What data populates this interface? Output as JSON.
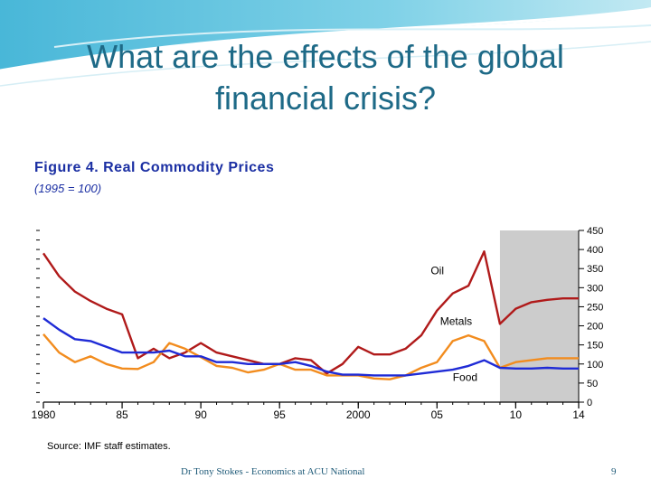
{
  "slide": {
    "title_line1": "What are the effects of the global",
    "title_line2": "financial crisis?",
    "footer": "Dr Tony Stokes - Economics at ACU National",
    "page_number": "9"
  },
  "colors": {
    "title": "#1e6a87",
    "oil": "#b01a1a",
    "metals": "#f28c1e",
    "food": "#1f2bd6",
    "forecast_shade": "#cccccc",
    "figure_title": "#1b2fa3"
  },
  "chart_data": {
    "type": "line",
    "title": "Figure 4.   Real Commodity Prices",
    "subtitle": "(1995 = 100)",
    "source": "Source: IMF staff estimates.",
    "xlim": [
      1980,
      2014
    ],
    "ylim": [
      0,
      450
    ],
    "x_ticks": [
      1980,
      1985,
      1990,
      1995,
      2000,
      2005,
      2010,
      2014
    ],
    "x_tick_labels": [
      "1980",
      "85",
      "90",
      "95",
      "2000",
      "05",
      "10",
      "14"
    ],
    "y_ticks": [
      0,
      50,
      100,
      150,
      200,
      250,
      300,
      350,
      400,
      450
    ],
    "y_tick_labels": [
      "0",
      "50",
      "100",
      "150",
      "200",
      "250",
      "300",
      "350",
      "400",
      "450"
    ],
    "shaded_range": [
      2009,
      2014
    ],
    "series": [
      {
        "name": "Oil",
        "label": "Oil",
        "color": "#b01a1a",
        "x": [
          1980,
          1981,
          1982,
          1983,
          1984,
          1985,
          1986,
          1987,
          1988,
          1989,
          1990,
          1991,
          1992,
          1993,
          1994,
          1995,
          1996,
          1997,
          1998,
          1999,
          2000,
          2001,
          2002,
          2003,
          2004,
          2005,
          2006,
          2007,
          2008,
          2009,
          2010,
          2011,
          2012,
          2013,
          2014
        ],
        "values": [
          390,
          330,
          290,
          265,
          245,
          230,
          115,
          140,
          115,
          130,
          155,
          130,
          120,
          110,
          100,
          100,
          115,
          110,
          75,
          100,
          145,
          125,
          125,
          140,
          175,
          240,
          285,
          305,
          395,
          205,
          245,
          262,
          268,
          272,
          272
        ]
      },
      {
        "name": "Metals",
        "label": "Metals",
        "color": "#f28c1e",
        "x": [
          1980,
          1981,
          1982,
          1983,
          1984,
          1985,
          1986,
          1987,
          1988,
          1989,
          1990,
          1991,
          1992,
          1993,
          1994,
          1995,
          1996,
          1997,
          1998,
          1999,
          2000,
          2001,
          2002,
          2003,
          2004,
          2005,
          2006,
          2007,
          2008,
          2009,
          2010,
          2011,
          2012,
          2013,
          2014
        ],
        "values": [
          178,
          130,
          105,
          120,
          100,
          88,
          87,
          105,
          155,
          140,
          118,
          95,
          90,
          78,
          85,
          100,
          85,
          85,
          70,
          70,
          70,
          62,
          60,
          70,
          90,
          105,
          160,
          175,
          160,
          90,
          105,
          110,
          115,
          115,
          115
        ]
      },
      {
        "name": "Food",
        "label": "Food",
        "color": "#1f2bd6",
        "x": [
          1980,
          1981,
          1982,
          1983,
          1984,
          1985,
          1986,
          1987,
          1988,
          1989,
          1990,
          1991,
          1992,
          1993,
          1994,
          1995,
          1996,
          1997,
          1998,
          1999,
          2000,
          2001,
          2002,
          2003,
          2004,
          2005,
          2006,
          2007,
          2008,
          2009,
          2010,
          2011,
          2012,
          2013,
          2014
        ],
        "values": [
          220,
          190,
          165,
          160,
          145,
          130,
          130,
          130,
          135,
          120,
          120,
          105,
          105,
          100,
          100,
          100,
          105,
          95,
          80,
          72,
          72,
          70,
          70,
          70,
          75,
          80,
          85,
          95,
          110,
          90,
          88,
          88,
          90,
          88,
          88
        ]
      }
    ]
  }
}
